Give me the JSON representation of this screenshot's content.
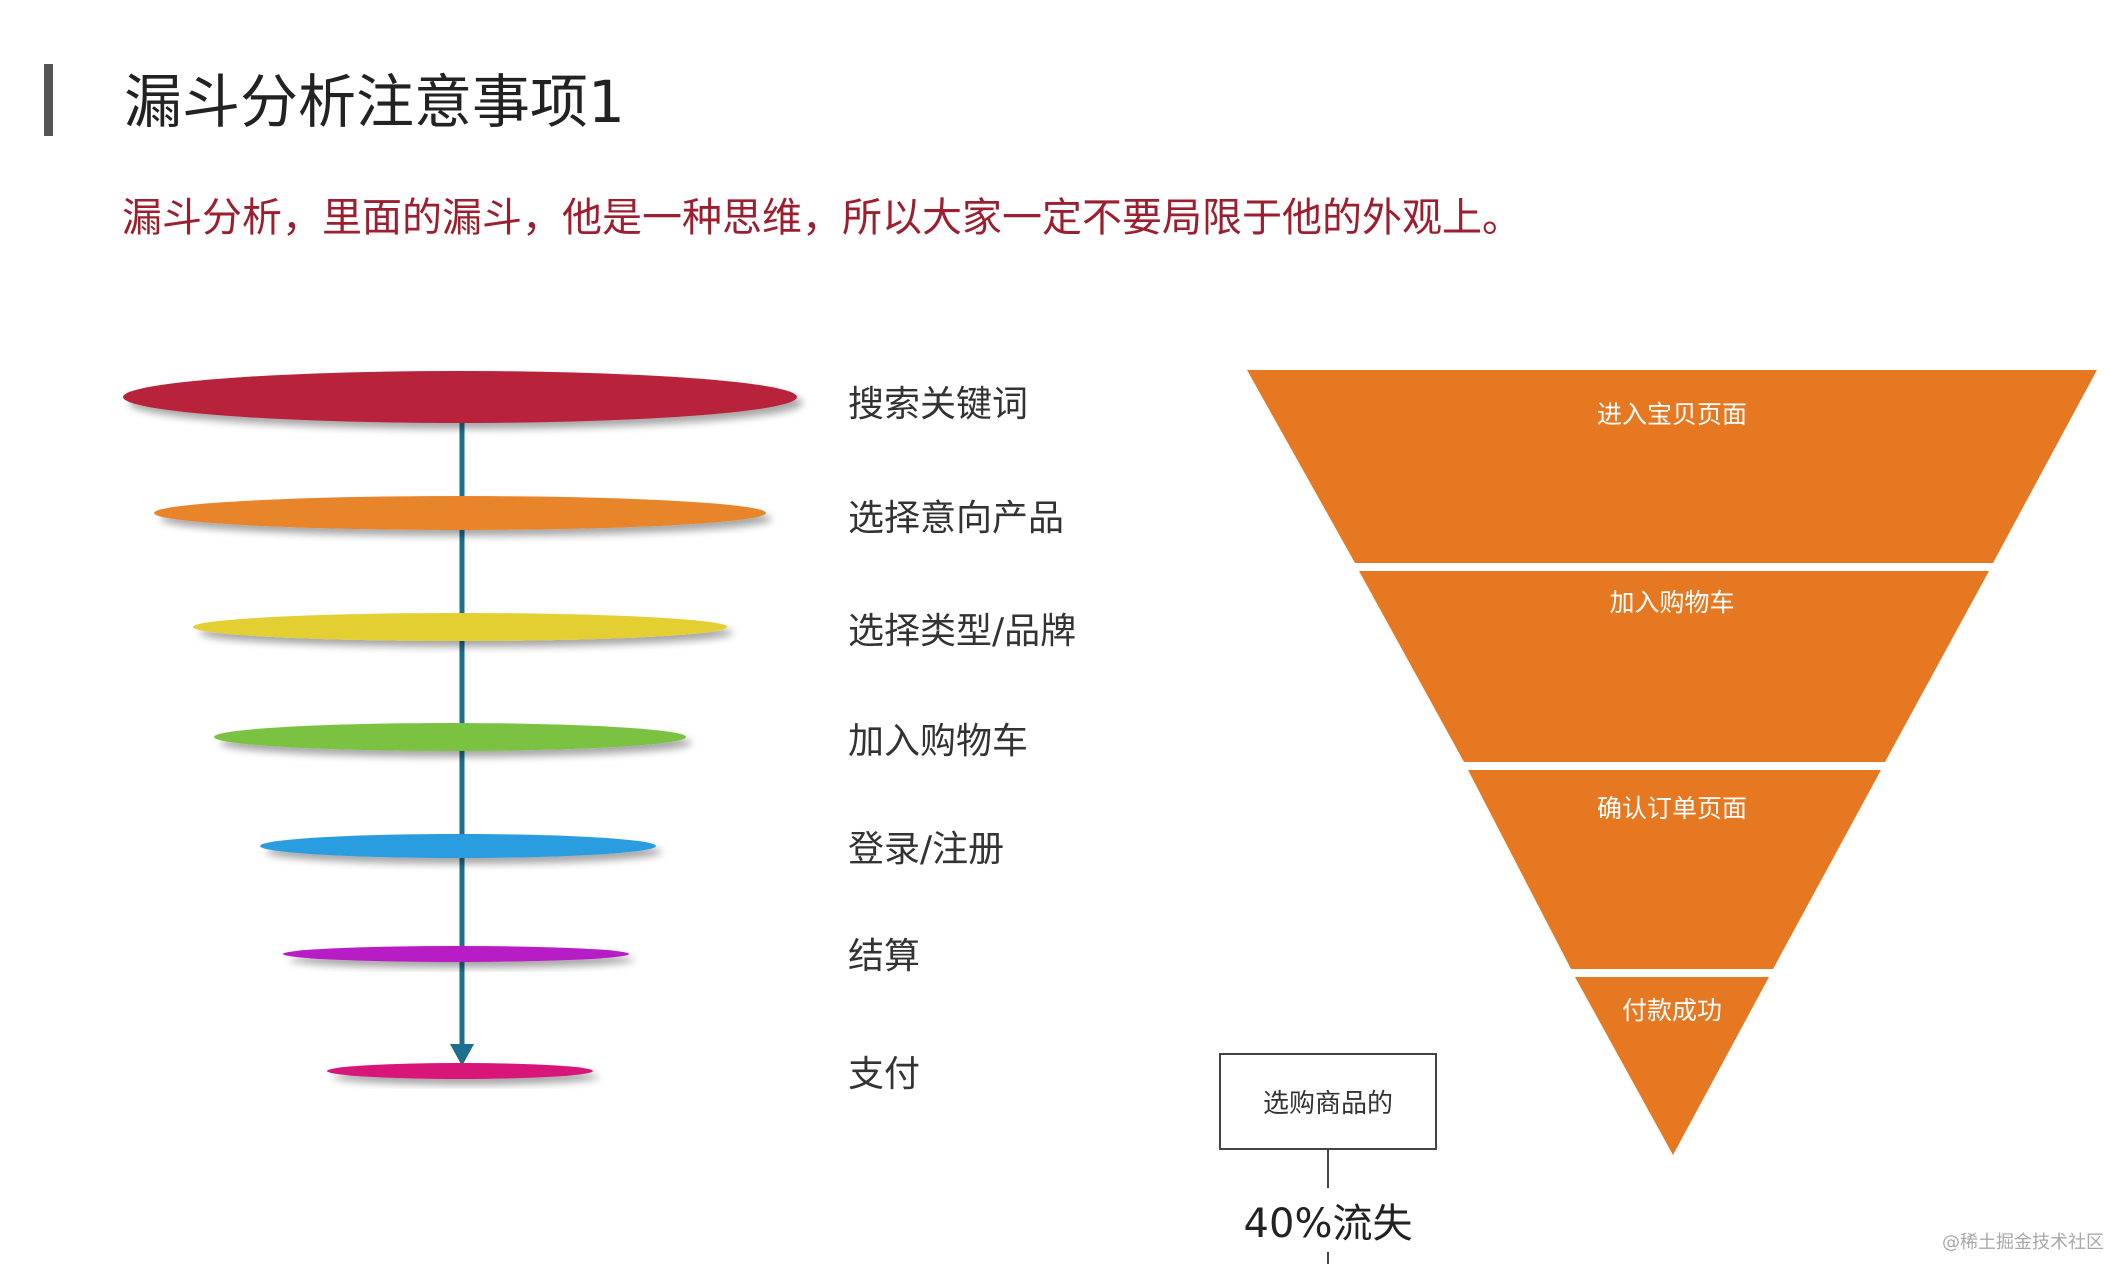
{
  "title": "漏斗分析注意事项1",
  "subtitle": "漏斗分析，里面的漏斗，他是一种思维，所以大家一定不要局限于他的外观上。",
  "funnel_steps": [
    {
      "label": "搜索关键词",
      "color": "#b8243a"
    },
    {
      "label": "选择意向产品",
      "color": "#e8842a"
    },
    {
      "label": "选择类型/品牌",
      "color": "#e3cf32"
    },
    {
      "label": "加入购物车",
      "color": "#7cc242"
    },
    {
      "label": "登录/注册",
      "color": "#2a9de0"
    },
    {
      "label": "结算",
      "color": "#b81ec4"
    },
    {
      "label": "支付",
      "color": "#d8197a"
    }
  ],
  "arrow_color": "#1d6f8e",
  "triangle": {
    "color": "#e67822",
    "stages": [
      "进入宝贝页面",
      "加入购物车",
      "确认订单页面",
      "付款成功"
    ]
  },
  "callout": {
    "box_text": "选购商品的",
    "loss_text": "40%流失"
  },
  "watermark": "@稀土掘金技术社区"
}
